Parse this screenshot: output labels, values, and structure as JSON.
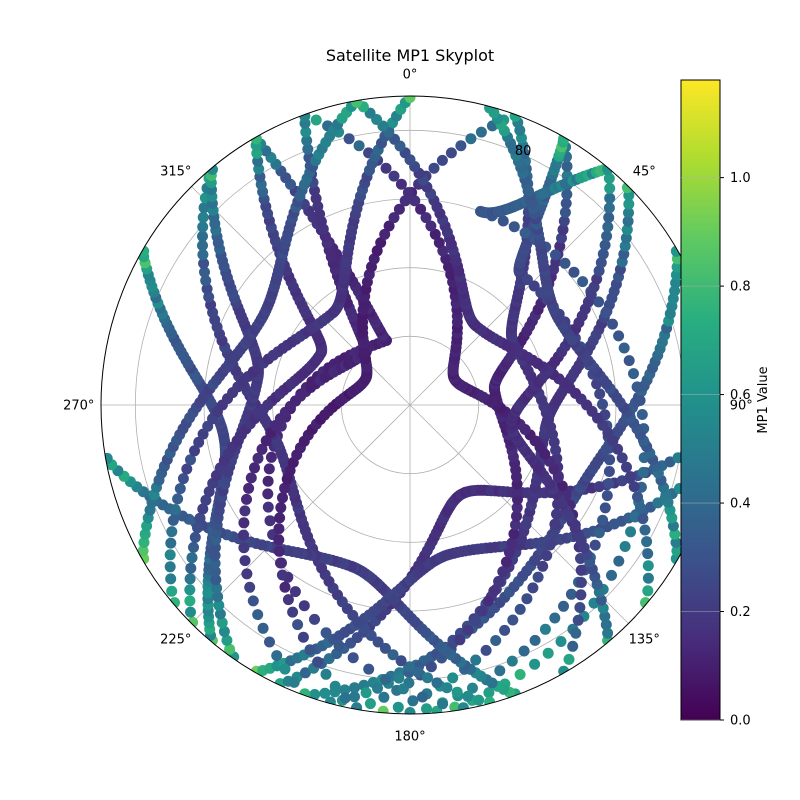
{
  "chart_data": {
    "type": "scatter",
    "projection": "polar",
    "title": "Satellite MP1 Skyplot",
    "theta_direction": "clockwise",
    "theta_zero": "N",
    "theta_ticks": [
      {
        "angle": 0,
        "label": "0°"
      },
      {
        "angle": 45,
        "label": "45°"
      },
      {
        "angle": 90,
        "label": "90°"
      },
      {
        "angle": 135,
        "label": "135°"
      },
      {
        "angle": 180,
        "label": "180°"
      },
      {
        "angle": 225,
        "label": "225°"
      },
      {
        "angle": 270,
        "label": "270°"
      },
      {
        "angle": 315,
        "label": "315°"
      }
    ],
    "radial_axis": {
      "ticks": [
        {
          "value": 20,
          "label": ""
        },
        {
          "value": 40,
          "label": ""
        },
        {
          "value": 60,
          "label": ""
        },
        {
          "value": 80,
          "label": "80"
        }
      ],
      "range": [
        0,
        90
      ],
      "label_angle": 22.5
    },
    "grid": true,
    "colorbar": {
      "label": "MP1 Value",
      "colormap": "viridis",
      "range": [
        0,
        1.18
      ],
      "ticks": [
        {
          "value": 0.0,
          "label": "0.0"
        },
        {
          "value": 0.2,
          "label": "0.2"
        },
        {
          "value": 0.4,
          "label": "0.4"
        },
        {
          "value": 0.6,
          "label": "0.6"
        },
        {
          "value": 0.8,
          "label": "0.8"
        },
        {
          "value": 1.0,
          "label": "1.0"
        }
      ]
    },
    "series": [
      {
        "start_az": 205,
        "peak_az": 150,
        "end_az": 95,
        "min_zenith": 30,
        "mp1_level": 0.18
      },
      {
        "start_az": 210,
        "peak_az": 165,
        "end_az": 100,
        "min_zenith": 45,
        "mp1_level": 0.22
      },
      {
        "start_az": 200,
        "peak_az": 120,
        "end_az": 60,
        "min_zenith": 55,
        "mp1_level": 0.25
      },
      {
        "start_az": 195,
        "peak_az": 100,
        "end_az": 45,
        "min_zenith": 40,
        "mp1_level": 0.2
      },
      {
        "start_az": 190,
        "peak_az": 80,
        "end_az": 30,
        "min_zenith": 25,
        "mp1_level": 0.15
      },
      {
        "start_az": 185,
        "peak_az": 60,
        "end_az": 20,
        "min_zenith": 35,
        "mp1_level": 0.2
      },
      {
        "start_az": 180,
        "peak_az": 40,
        "end_az": 30,
        "min_zenith": 50,
        "mp1_level": 0.25
      },
      {
        "start_az": 175,
        "peak_az": 20,
        "end_az": 40,
        "min_zenith": 60,
        "mp1_level": 0.28
      },
      {
        "start_az": 170,
        "peak_az": 340,
        "end_az": 330,
        "min_zenith": 20,
        "mp1_level": 0.15
      },
      {
        "start_az": 165,
        "peak_az": 250,
        "end_az": 320,
        "min_zenith": 40,
        "mp1_level": 0.2
      },
      {
        "start_az": 160,
        "peak_az": 200,
        "end_az": 260,
        "min_zenith": 50,
        "mp1_level": 0.22
      },
      {
        "start_az": 220,
        "peak_az": 260,
        "end_az": 300,
        "min_zenith": 55,
        "mp1_level": 0.25
      },
      {
        "start_az": 215,
        "peak_az": 280,
        "end_az": 320,
        "min_zenith": 45,
        "mp1_level": 0.22
      },
      {
        "start_az": 225,
        "peak_az": 300,
        "end_az": 330,
        "min_zenith": 30,
        "mp1_level": 0.18
      },
      {
        "start_az": 200,
        "peak_az": 320,
        "end_az": 340,
        "min_zenith": 20,
        "mp1_level": 0.15
      },
      {
        "start_az": 190,
        "peak_az": 300,
        "end_az": 20,
        "min_zenith": 15,
        "mp1_level": 0.12
      },
      {
        "start_az": 150,
        "peak_az": 60,
        "end_az": 340,
        "min_zenith": 15,
        "mp1_level": 0.14
      },
      {
        "start_az": 140,
        "peak_az": 100,
        "end_az": 40,
        "min_zenith": 30,
        "mp1_level": 0.18
      },
      {
        "start_az": 230,
        "peak_az": 320,
        "end_az": 0,
        "min_zenith": 35,
        "mp1_level": 0.2
      },
      {
        "start_az": 130,
        "peak_az": 40,
        "end_az": 350,
        "min_zenith": 30,
        "mp1_level": 0.18
      },
      {
        "start_az": 240,
        "peak_az": 300,
        "end_az": 350,
        "min_zenith": 50,
        "mp1_level": 0.24
      },
      {
        "start_az": 120,
        "peak_az": 60,
        "end_az": 15,
        "min_zenith": 50,
        "mp1_level": 0.24
      }
    ]
  }
}
